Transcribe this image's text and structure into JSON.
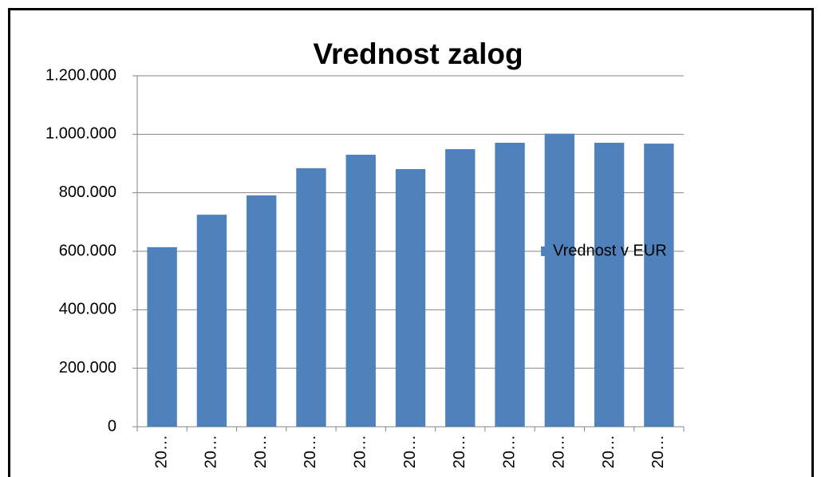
{
  "chart_data": {
    "type": "bar",
    "title": "Vrednost zalog",
    "categories": [
      "20…",
      "20…",
      "20…",
      "20…",
      "20…",
      "20…",
      "20…",
      "20…",
      "20…",
      "20…",
      "20…"
    ],
    "series": [
      {
        "name": "Vrednost v EUR",
        "color": "#4f81bd",
        "values": [
          614000,
          725000,
          791000,
          884000,
          930000,
          881000,
          949000,
          971000,
          1002000,
          971000,
          968000
        ]
      }
    ],
    "ylim": [
      0,
      1200000
    ],
    "yticks": [
      0,
      {
        "value": 200000,
        "label": "200.000"
      },
      {
        "value": 400000,
        "label": "400.000"
      },
      {
        "value": 600000,
        "label": "600.000"
      },
      {
        "value": 800000,
        "label": "800.000"
      },
      {
        "value": 1000000,
        "label": "1.000.000"
      },
      {
        "value": 1200000,
        "label": "1.200.000"
      }
    ],
    "grid": true,
    "legend": "right"
  }
}
